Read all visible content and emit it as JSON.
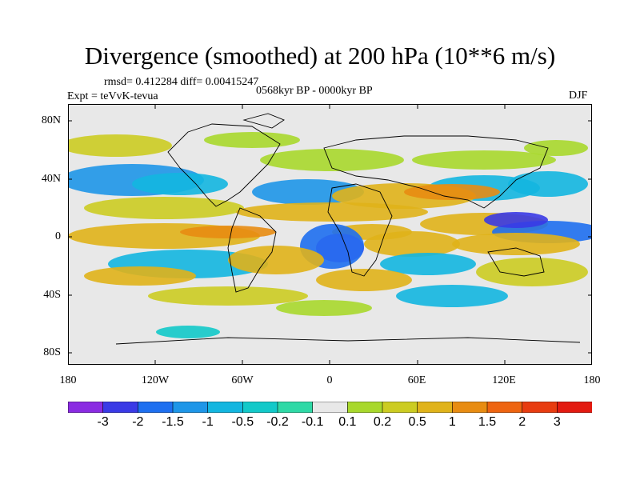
{
  "title": "Divergence (smoothed) at 200 hPa (10**6 m/s)",
  "stats": "rmsd= 0.412284 diff= 0.00415247",
  "expt": "Expt = teVvK-tevua",
  "period": "0568kyr BP - 0000kyr BP",
  "season": "DJF",
  "lat_labels": [
    "80N",
    "40N",
    "0",
    "40S",
    "80S"
  ],
  "lon_labels": [
    "180",
    "120W",
    "60W",
    "0",
    "60E",
    "120E",
    "180"
  ],
  "colorbar": {
    "labels": [
      "-3",
      "-2",
      "-1.5",
      "-1",
      "-0.5",
      "-0.2",
      "-0.1",
      "0.1",
      "0.2",
      "0.5",
      "1",
      "1.5",
      "2",
      "3"
    ],
    "colors": [
      "#8a2be2",
      "#3a3ae6",
      "#1e6ff0",
      "#1e96e8",
      "#13b6e0",
      "#12c9c9",
      "#2fd9a6",
      "#e8e8e8",
      "#a8d82c",
      "#cccc22",
      "#e0b31a",
      "#e88c12",
      "#ee6410",
      "#e83c10",
      "#e31a10"
    ]
  },
  "map": {
    "background": "#e8e8e8",
    "coastline": "#000000"
  }
}
